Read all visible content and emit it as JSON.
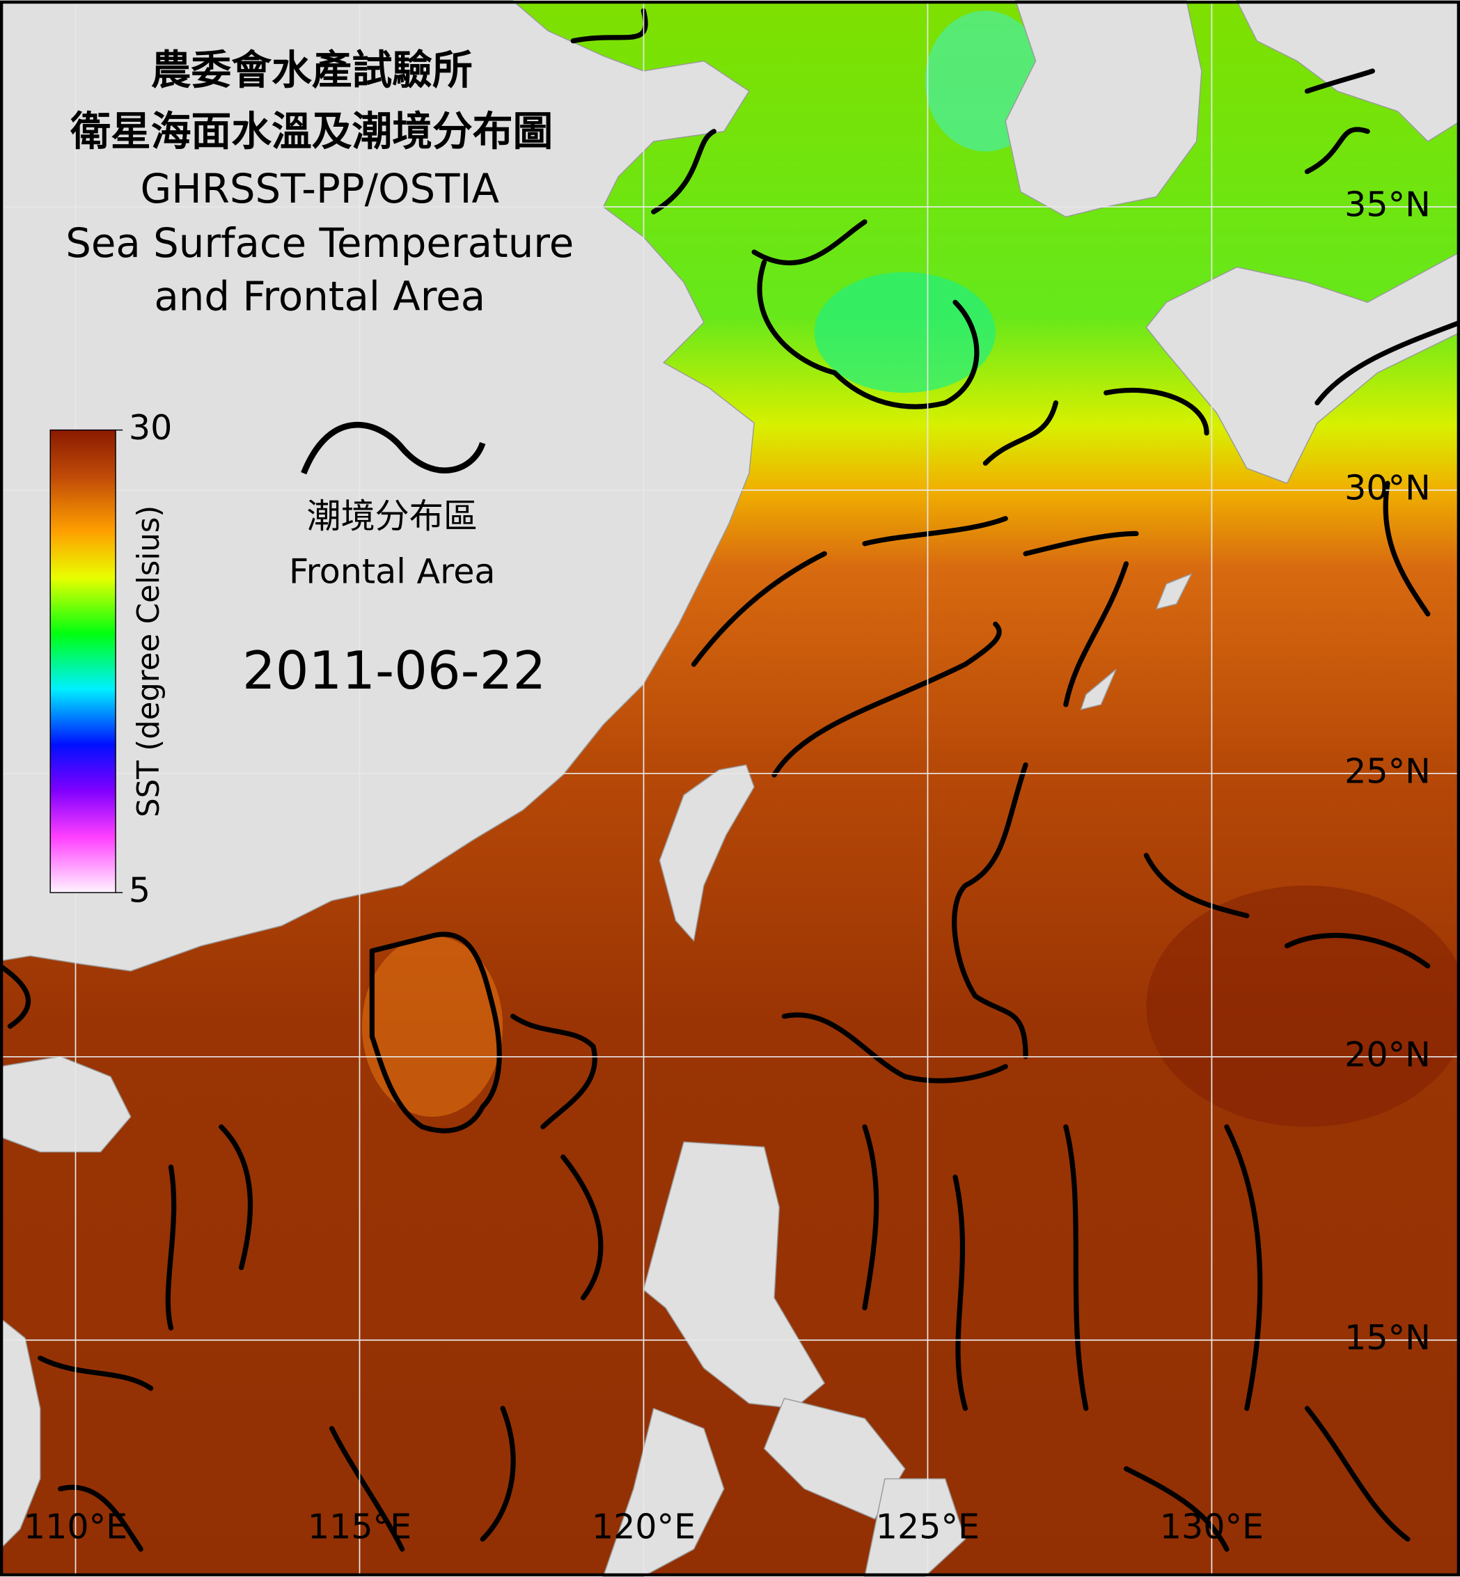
{
  "chart_data": {
    "type": "map",
    "title": [
      "農委會水產試驗所",
      "衛星海面水溫及潮境分布圖",
      "GHRSST-PP/OSTIA",
      "Sea Surface Temperature",
      "and Frontal Area"
    ],
    "front_legend": [
      "潮境分布區",
      "Frontal Area"
    ],
    "date": "2011-06-22",
    "colorbar": {
      "label": "SST (degree Celsius)",
      "lim": [
        5,
        30
      ],
      "ticks": [
        5,
        30
      ]
    },
    "xlim": [
      108.67,
      134.37
    ],
    "ylim": [
      10.83,
      38.64
    ],
    "xticks": [
      {
        "value": 110,
        "label": "110°E"
      },
      {
        "value": 115,
        "label": "115°E"
      },
      {
        "value": 120,
        "label": "120°E"
      },
      {
        "value": 125,
        "label": "125°E"
      },
      {
        "value": 130,
        "label": "130°E"
      }
    ],
    "yticks": [
      {
        "value": 15,
        "label": "15°N"
      },
      {
        "value": 20,
        "label": "20°N"
      },
      {
        "value": 25,
        "label": "25°N"
      },
      {
        "value": 30,
        "label": "30°N"
      },
      {
        "value": 35,
        "label": "35°N"
      }
    ],
    "grid": true
  }
}
